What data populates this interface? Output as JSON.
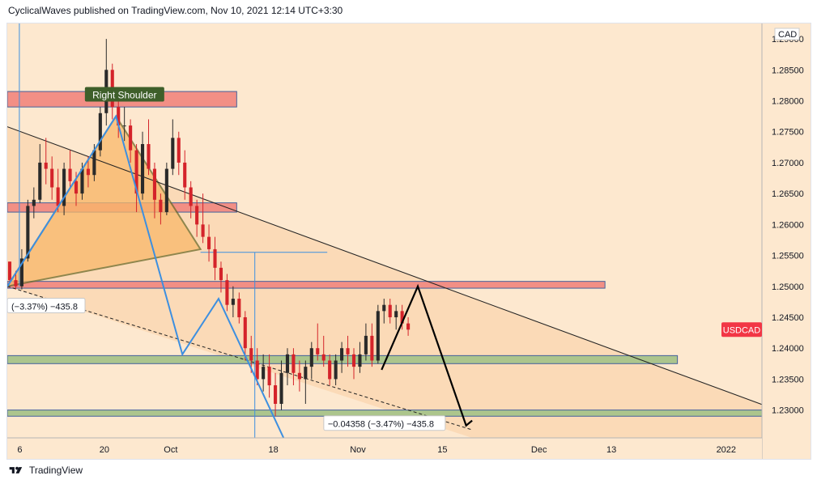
{
  "header": {
    "publish_line": "CyclicalWaves published on TradingView.com, Nov 10, 2021 12:14 UTC+3:30"
  },
  "footer": {
    "brand": "TradingView"
  },
  "colors": {
    "background": "#fde8cf",
    "up_candle": "#2a2a2a",
    "down_candle": "#d4232a",
    "resistance_zone": "#f28b82",
    "support_zone": "#a8c48a",
    "pattern_fill": "#f9b86a",
    "wave_line": "#3d8fe0",
    "symbol_badge": "#f23645"
  },
  "chart_data": {
    "type": "candlestick",
    "symbol": "USDCAD",
    "currency": "CAD",
    "y_ticks": [
      "1.29000",
      "1.28500",
      "1.28000",
      "1.27500",
      "1.27000",
      "1.26500",
      "1.26000",
      "1.25500",
      "1.25000",
      "1.24500",
      "1.24000",
      "1.23500",
      "1.23000"
    ],
    "ylim": [
      1.2255,
      1.2925
    ],
    "x_ticks": [
      "6",
      "20",
      "Oct",
      "18",
      "Nov",
      "15",
      "Dec",
      "13",
      "2022"
    ],
    "x_tick_dates": [
      "2021-09-06",
      "2021-09-20",
      "2021-10-01",
      "2021-10-18",
      "2021-11-01",
      "2021-11-15",
      "2021-12-01",
      "2021-12-13",
      "2022-01-01"
    ],
    "xlim": [
      "2021-09-05",
      "2022-01-08"
    ],
    "candles": [
      [
        "2021-09-05",
        1.254,
        1.254,
        1.2505,
        1.251
      ],
      [
        "2021-09-06",
        1.251,
        1.2525,
        1.2495,
        1.25
      ],
      [
        "2021-09-07",
        1.25,
        1.256,
        1.2495,
        1.2545
      ],
      [
        "2021-09-08",
        1.2545,
        1.264,
        1.254,
        1.263
      ],
      [
        "2021-09-09",
        1.263,
        1.266,
        1.261,
        1.264
      ],
      [
        "2021-09-10",
        1.264,
        1.273,
        1.2635,
        1.27
      ],
      [
        "2021-09-11",
        1.27,
        1.274,
        1.2665,
        1.269
      ],
      [
        "2021-09-12",
        1.269,
        1.271,
        1.264,
        1.266
      ],
      [
        "2021-09-13",
        1.266,
        1.269,
        1.262,
        1.263
      ],
      [
        "2021-09-14",
        1.263,
        1.27,
        1.2615,
        1.269
      ],
      [
        "2021-09-15",
        1.269,
        1.272,
        1.266,
        1.267
      ],
      [
        "2021-09-16",
        1.267,
        1.2685,
        1.263,
        1.265
      ],
      [
        "2021-09-17",
        1.265,
        1.27,
        1.264,
        1.269
      ],
      [
        "2021-09-18",
        1.269,
        1.271,
        1.266,
        1.268
      ],
      [
        "2021-09-19",
        1.268,
        1.273,
        1.267,
        1.272
      ],
      [
        "2021-09-20",
        1.272,
        1.279,
        1.271,
        1.278
      ],
      [
        "2021-09-21",
        1.278,
        1.29,
        1.276,
        1.285
      ],
      [
        "2021-09-22",
        1.285,
        1.286,
        1.277,
        1.279
      ],
      [
        "2021-09-23",
        1.279,
        1.28,
        1.274,
        1.276
      ],
      [
        "2021-09-24",
        1.276,
        1.279,
        1.2735,
        1.276
      ],
      [
        "2021-09-25",
        1.276,
        1.277,
        1.27,
        1.272
      ],
      [
        "2021-09-26",
        1.272,
        1.273,
        1.262,
        1.265
      ],
      [
        "2021-09-27",
        1.265,
        1.275,
        1.264,
        1.273
      ],
      [
        "2021-09-28",
        1.273,
        1.277,
        1.268,
        1.269
      ],
      [
        "2021-09-29",
        1.269,
        1.27,
        1.261,
        1.264
      ],
      [
        "2021-09-30",
        1.264,
        1.265,
        1.26,
        1.262
      ],
      [
        "2021-10-01",
        1.262,
        1.27,
        1.2615,
        1.269
      ],
      [
        "2021-10-02",
        1.269,
        1.277,
        1.268,
        1.274
      ],
      [
        "2021-10-03",
        1.274,
        1.275,
        1.268,
        1.27
      ],
      [
        "2021-10-04",
        1.27,
        1.272,
        1.264,
        1.266
      ],
      [
        "2021-10-05",
        1.266,
        1.267,
        1.261,
        1.263
      ],
      [
        "2021-10-06",
        1.263,
        1.264,
        1.258,
        1.26
      ],
      [
        "2021-10-07",
        1.26,
        1.265,
        1.257,
        1.258
      ],
      [
        "2021-10-08",
        1.258,
        1.26,
        1.254,
        1.256
      ],
      [
        "2021-10-09",
        1.256,
        1.258,
        1.251,
        1.253
      ],
      [
        "2021-10-10",
        1.253,
        1.254,
        1.249,
        1.251
      ],
      [
        "2021-10-11",
        1.251,
        1.252,
        1.246,
        1.247
      ],
      [
        "2021-10-12",
        1.247,
        1.25,
        1.245,
        1.248
      ],
      [
        "2021-10-13",
        1.248,
        1.249,
        1.244,
        1.245
      ],
      [
        "2021-10-14",
        1.245,
        1.246,
        1.238,
        1.24
      ],
      [
        "2021-10-15",
        1.24,
        1.242,
        1.236,
        1.238
      ],
      [
        "2021-10-16",
        1.238,
        1.24,
        1.234,
        1.235
      ],
      [
        "2021-10-17",
        1.235,
        1.239,
        1.233,
        1.237
      ],
      [
        "2021-10-18",
        1.237,
        1.239,
        1.232,
        1.234
      ],
      [
        "2021-10-19",
        1.234,
        1.236,
        1.229,
        1.231
      ],
      [
        "2021-10-20",
        1.231,
        1.238,
        1.23,
        1.236
      ],
      [
        "2021-10-21",
        1.236,
        1.24,
        1.234,
        1.239
      ],
      [
        "2021-10-22",
        1.239,
        1.24,
        1.234,
        1.236
      ],
      [
        "2021-10-23",
        1.236,
        1.238,
        1.233,
        1.235
      ],
      [
        "2021-10-24",
        1.235,
        1.238,
        1.231,
        1.237
      ],
      [
        "2021-10-25",
        1.237,
        1.241,
        1.235,
        1.24
      ],
      [
        "2021-10-26",
        1.24,
        1.244,
        1.238,
        1.239
      ],
      [
        "2021-10-27",
        1.239,
        1.242,
        1.237,
        1.238
      ],
      [
        "2021-10-28",
        1.238,
        1.239,
        1.234,
        1.235
      ],
      [
        "2021-10-29",
        1.235,
        1.239,
        1.234,
        1.238
      ],
      [
        "2021-10-30",
        1.238,
        1.241,
        1.236,
        1.24
      ],
      [
        "2021-10-31",
        1.24,
        1.242,
        1.237,
        1.239
      ],
      [
        "2021-11-01",
        1.239,
        1.24,
        1.235,
        1.237
      ],
      [
        "2021-11-02",
        1.237,
        1.241,
        1.236,
        1.239
      ],
      [
        "2021-11-03",
        1.239,
        1.244,
        1.238,
        1.242
      ],
      [
        "2021-11-04",
        1.242,
        1.244,
        1.237,
        1.238
      ],
      [
        "2021-11-05",
        1.238,
        1.247,
        1.2375,
        1.246
      ],
      [
        "2021-11-06",
        1.246,
        1.248,
        1.244,
        1.247
      ],
      [
        "2021-11-07",
        1.247,
        1.248,
        1.244,
        1.245
      ],
      [
        "2021-11-08",
        1.245,
        1.247,
        1.243,
        1.246
      ],
      [
        "2021-11-09",
        1.246,
        1.247,
        1.243,
        1.244
      ],
      [
        "2021-11-10",
        1.244,
        1.245,
        1.242,
        1.243
      ]
    ],
    "zones": [
      {
        "from": "2021-09-05",
        "to": "2021-10-13",
        "low": 1.279,
        "high": 1.2815,
        "kind": "resistance"
      },
      {
        "from": "2021-09-05",
        "to": "2021-10-13",
        "low": 1.262,
        "high": 1.2635,
        "kind": "resistance"
      },
      {
        "from": "2021-09-05",
        "to": "2021-12-13",
        "low": 1.2497,
        "high": 1.2508,
        "kind": "resistance"
      },
      {
        "from": "2021-09-05",
        "to": "2021-12-25",
        "low": 1.2375,
        "high": 1.2388,
        "kind": "support"
      },
      {
        "from": "2021-09-05",
        "to": "2022-01-08",
        "low": 1.229,
        "high": 1.23,
        "kind": "support"
      }
    ],
    "annotations": [
      {
        "text": "Right Shoulder",
        "x": "2021-09-20",
        "y": 1.28,
        "kind": "label"
      },
      {
        "text": "(−3.37%) −435.8",
        "x": "2021-09-05",
        "y": 1.2465,
        "kind": "measure"
      },
      {
        "text": "−0.04358 (−3.47%) −435.8",
        "x": "2021-10-01",
        "y": 1.2275,
        "kind": "measure"
      }
    ],
    "projection": [
      [
        "2021-11-06",
        1.2365
      ],
      [
        "2021-11-12",
        1.25
      ],
      [
        "2021-11-20",
        1.2275
      ],
      [
        "2021-11-21",
        1.2283
      ]
    ],
    "wave": [
      [
        "2021-09-05",
        1.25
      ],
      [
        "2021-09-23",
        1.2775
      ],
      [
        "2021-10-04",
        1.239
      ],
      [
        "2021-10-10",
        1.248
      ],
      [
        "2021-10-21",
        1.225
      ]
    ],
    "pattern": [
      [
        "2021-09-05",
        1.25
      ],
      [
        "2021-09-23",
        1.2775
      ],
      [
        "2021-10-07",
        1.256
      ]
    ],
    "trendlines": [
      {
        "points": [
          [
            "2021-09-05",
            1.2758
          ],
          [
            "2022-01-08",
            1.2309
          ]
        ],
        "style": "solid"
      },
      {
        "points": [
          [
            "2021-09-05",
            1.25
          ],
          [
            "2021-11-21",
            1.2268
          ]
        ],
        "style": "dashed"
      },
      {
        "points": [
          [
            "2021-09-05",
            1.25
          ],
          [
            "2021-09-23",
            1.2775
          ]
        ],
        "style": "dashed"
      }
    ]
  }
}
